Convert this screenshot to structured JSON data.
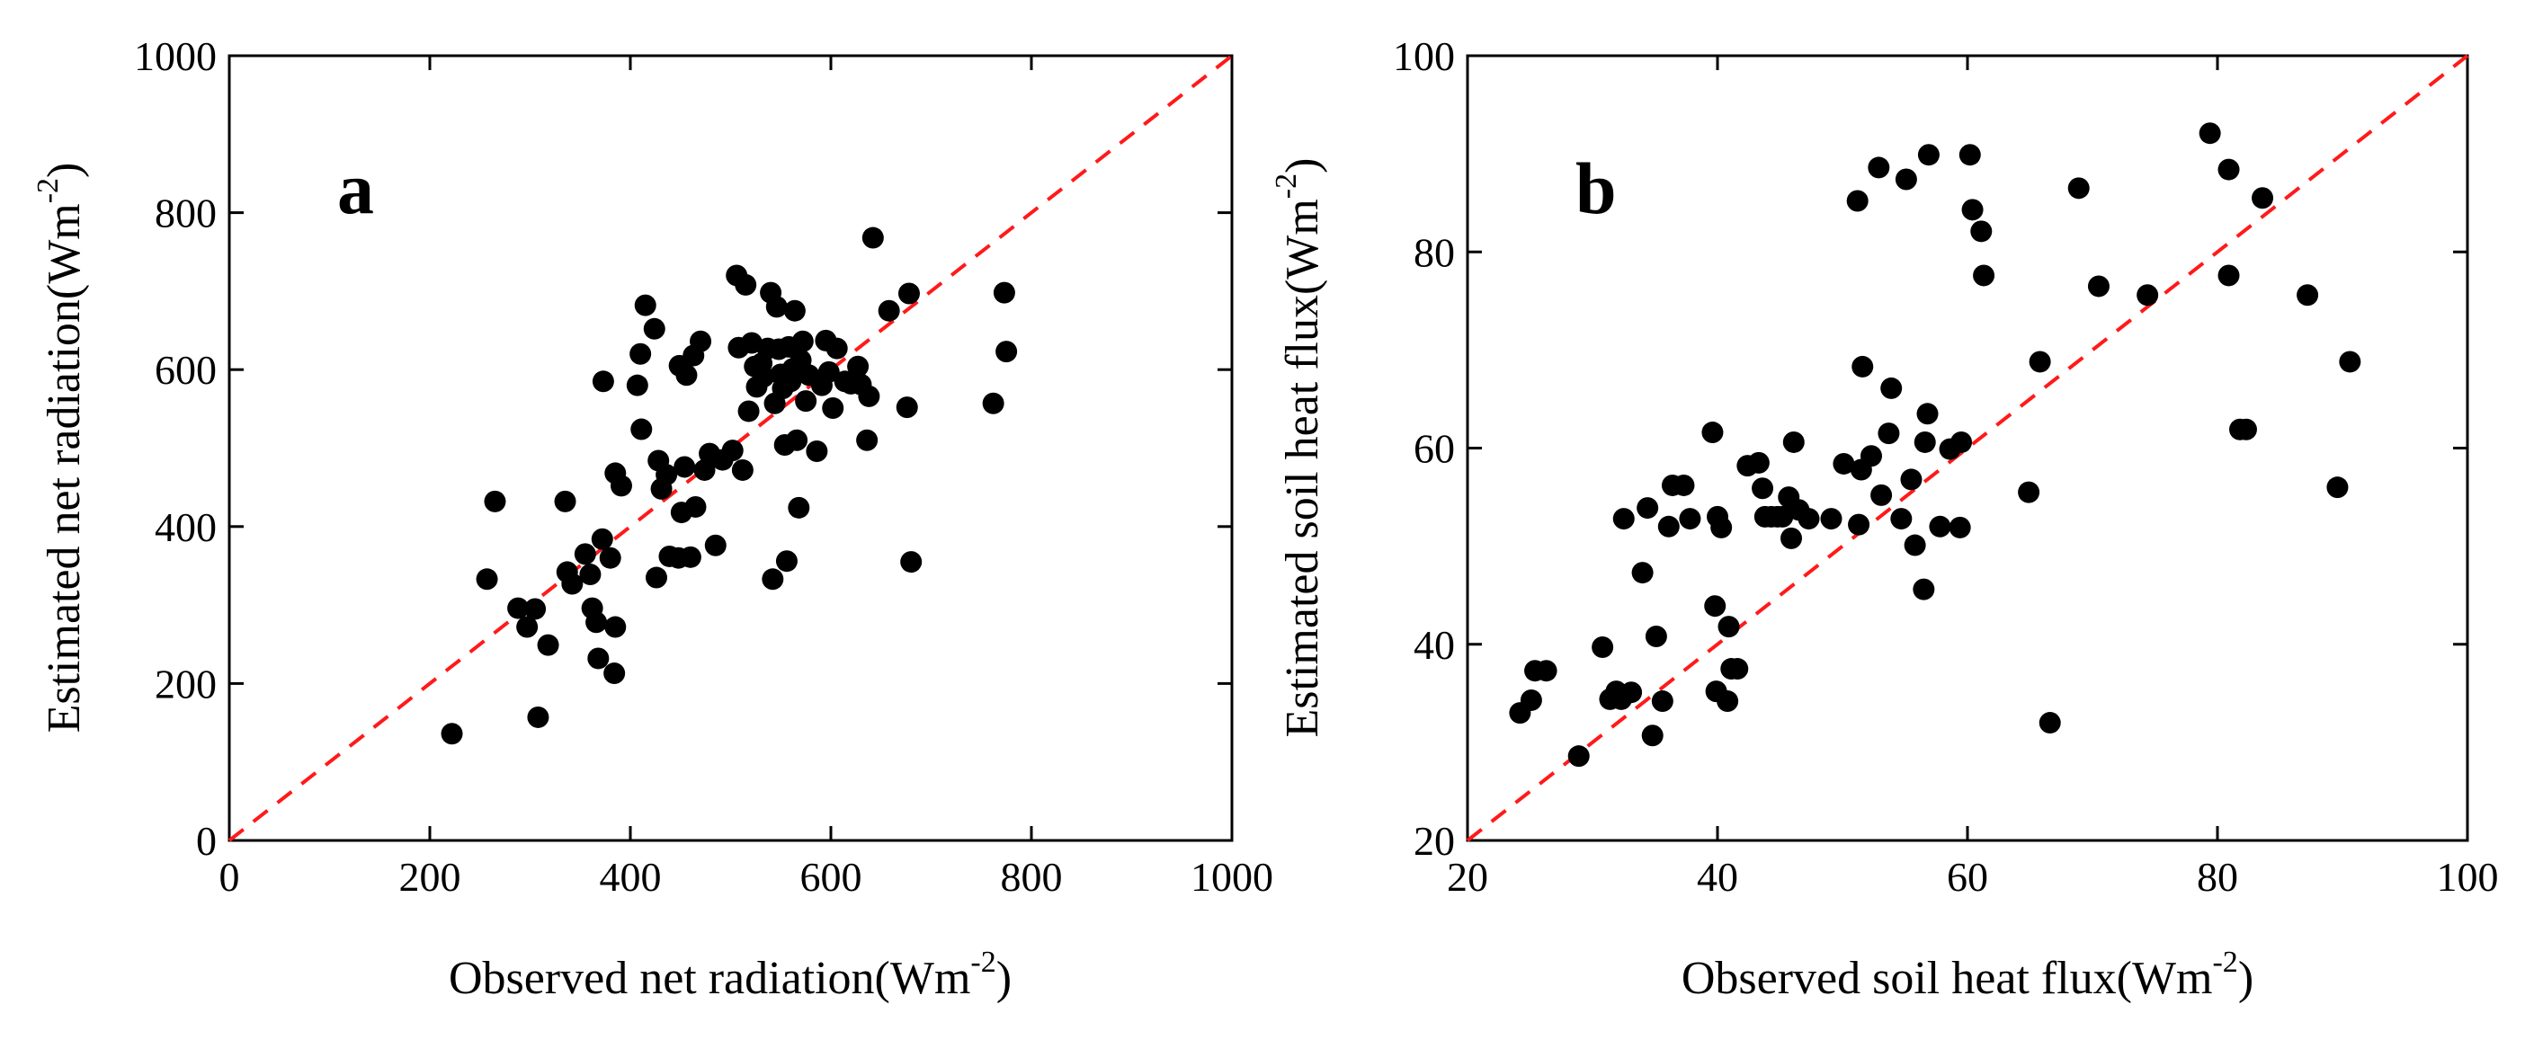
{
  "chart_data": [
    {
      "type": "scatter",
      "panel_label": "a",
      "xlabel": "Observed net radiation(Wm",
      "ylabel": "Estimated net radiation(Wm",
      "unit_exponent": "-2",
      "unit_close": ")",
      "xlim": [
        0,
        1000
      ],
      "ylim": [
        0,
        1000
      ],
      "xticks": [
        "0",
        "200",
        "400",
        "600",
        "800",
        "1000"
      ],
      "yticks": [
        "0",
        "200",
        "400",
        "600",
        "800",
        "1000"
      ],
      "reference_line": {
        "label": "1:1 line",
        "color": "#ff1a1a",
        "style": "dashed"
      },
      "marker_color": "#000000",
      "points": [
        [
          222,
          136
        ],
        [
          257,
          333
        ],
        [
          265,
          432
        ],
        [
          288,
          296
        ],
        [
          297,
          272
        ],
        [
          305,
          295
        ],
        [
          308,
          157
        ],
        [
          318,
          249
        ],
        [
          335,
          432
        ],
        [
          337,
          342
        ],
        [
          342,
          327
        ],
        [
          355,
          365
        ],
        [
          360,
          339
        ],
        [
          362,
          296
        ],
        [
          366,
          278
        ],
        [
          368,
          232
        ],
        [
          372,
          384
        ],
        [
          373,
          585
        ],
        [
          380,
          360
        ],
        [
          384,
          213
        ],
        [
          385,
          272
        ],
        [
          385,
          468
        ],
        [
          391,
          452
        ],
        [
          407,
          580
        ],
        [
          410,
          620
        ],
        [
          411,
          524
        ],
        [
          415,
          682
        ],
        [
          424,
          652
        ],
        [
          426,
          335
        ],
        [
          428,
          484
        ],
        [
          431,
          448
        ],
        [
          436,
          466
        ],
        [
          439,
          362
        ],
        [
          448,
          360
        ],
        [
          449,
          605
        ],
        [
          451,
          418
        ],
        [
          454,
          476
        ],
        [
          456,
          593
        ],
        [
          460,
          361
        ],
        [
          463,
          618
        ],
        [
          465,
          425
        ],
        [
          470,
          636
        ],
        [
          474,
          472
        ],
        [
          479,
          493
        ],
        [
          485,
          376
        ],
        [
          492,
          485
        ],
        [
          502,
          497
        ],
        [
          506,
          720
        ],
        [
          508,
          628
        ],
        [
          512,
          472
        ],
        [
          515,
          708
        ],
        [
          518,
          547
        ],
        [
          521,
          634
        ],
        [
          524,
          604
        ],
        [
          526,
          578
        ],
        [
          528,
          605
        ],
        [
          531,
          608
        ],
        [
          533,
          591
        ],
        [
          537,
          627
        ],
        [
          540,
          698
        ],
        [
          542,
          333
        ],
        [
          544,
          557
        ],
        [
          546,
          680
        ],
        [
          548,
          626
        ],
        [
          550,
          594
        ],
        [
          552,
          576
        ],
        [
          554,
          504
        ],
        [
          556,
          356
        ],
        [
          558,
          629
        ],
        [
          560,
          585
        ],
        [
          562,
          601
        ],
        [
          564,
          675
        ],
        [
          566,
          510
        ],
        [
          568,
          424
        ],
        [
          570,
          612
        ],
        [
          572,
          636
        ],
        [
          575,
          560
        ],
        [
          578,
          593
        ],
        [
          586,
          496
        ],
        [
          591,
          580
        ],
        [
          595,
          637
        ],
        [
          598,
          597
        ],
        [
          602,
          551
        ],
        [
          606,
          627
        ],
        [
          614,
          585
        ],
        [
          620,
          582
        ],
        [
          627,
          604
        ],
        [
          630,
          581
        ],
        [
          636,
          510
        ],
        [
          638,
          566
        ],
        [
          642,
          768
        ],
        [
          658,
          675
        ],
        [
          676,
          552
        ],
        [
          678,
          697
        ],
        [
          680,
          355
        ],
        [
          762,
          557
        ],
        [
          773,
          698
        ],
        [
          775,
          623
        ]
      ]
    },
    {
      "type": "scatter",
      "panel_label": "b",
      "xlabel": "Observed soil heat flux(Wm",
      "ylabel": "Estimated soil heat flux(Wm",
      "unit_exponent": "-2",
      "unit_close": ")",
      "xlim": [
        20,
        100
      ],
      "ylim": [
        20,
        100
      ],
      "xticks": [
        "20",
        "40",
        "60",
        "80",
        "100"
      ],
      "yticks": [
        "20",
        "40",
        "60",
        "80",
        "100"
      ],
      "reference_line": {
        "label": "1:1 line",
        "color": "#ff1a1a",
        "style": "dashed"
      },
      "marker_color": "#000000",
      "points": [
        [
          24.2,
          33
        ],
        [
          25.1,
          34.3
        ],
        [
          25.4,
          37.3
        ],
        [
          26.3,
          37.3
        ],
        [
          28.9,
          28.6
        ],
        [
          30.8,
          39.7
        ],
        [
          31.4,
          34.4
        ],
        [
          31.9,
          35.2
        ],
        [
          32.3,
          34.4
        ],
        [
          32.5,
          52.8
        ],
        [
          33.1,
          35.1
        ],
        [
          34.0,
          47.3
        ],
        [
          34.4,
          53.9
        ],
        [
          34.8,
          30.7
        ],
        [
          35.1,
          40.8
        ],
        [
          35.6,
          34.2
        ],
        [
          36.1,
          52.0
        ],
        [
          36.4,
          56.2
        ],
        [
          37.3,
          56.2
        ],
        [
          37.8,
          52.8
        ],
        [
          39.6,
          61.6
        ],
        [
          39.8,
          43.9
        ],
        [
          39.9,
          35.2
        ],
        [
          40.0,
          53.0
        ],
        [
          40.3,
          51.9
        ],
        [
          40.8,
          34.2
        ],
        [
          40.9,
          41.8
        ],
        [
          41.1,
          37.5
        ],
        [
          41.6,
          37.5
        ],
        [
          42.4,
          58.2
        ],
        [
          43.3,
          58.5
        ],
        [
          43.6,
          55.9
        ],
        [
          43.8,
          53.0
        ],
        [
          44.3,
          53.0
        ],
        [
          44.8,
          53.0
        ],
        [
          45.2,
          53.0
        ],
        [
          45.7,
          55.0
        ],
        [
          45.9,
          50.8
        ],
        [
          46.1,
          60.6
        ],
        [
          46.5,
          53.7
        ],
        [
          47.3,
          52.8
        ],
        [
          49.1,
          52.8
        ],
        [
          50.1,
          58.4
        ],
        [
          51.2,
          85.2
        ],
        [
          51.3,
          52.2
        ],
        [
          51.5,
          57.8
        ],
        [
          51.6,
          68.3
        ],
        [
          52.3,
          59.2
        ],
        [
          52.9,
          88.6
        ],
        [
          53.1,
          55.2
        ],
        [
          53.7,
          61.5
        ],
        [
          53.9,
          66.1
        ],
        [
          54.7,
          52.8
        ],
        [
          55.1,
          87.4
        ],
        [
          55.5,
          56.8
        ],
        [
          55.8,
          50.1
        ],
        [
          56.5,
          45.6
        ],
        [
          56.6,
          60.6
        ],
        [
          56.8,
          63.5
        ],
        [
          56.9,
          89.9
        ],
        [
          57.8,
          52.0
        ],
        [
          58.6,
          59.9
        ],
        [
          59.4,
          51.9
        ],
        [
          59.5,
          60.6
        ],
        [
          60.2,
          89.9
        ],
        [
          60.4,
          84.3
        ],
        [
          61.1,
          82.1
        ],
        [
          61.3,
          77.6
        ],
        [
          64.9,
          55.5
        ],
        [
          65.8,
          68.8
        ],
        [
          66.6,
          32.0
        ],
        [
          68.9,
          86.5
        ],
        [
          70.5,
          76.5
        ],
        [
          74.4,
          75.6
        ],
        [
          79.4,
          92.1
        ],
        [
          80.9,
          88.4
        ],
        [
          80.9,
          77.6
        ],
        [
          81.8,
          61.9
        ],
        [
          82.3,
          61.9
        ],
        [
          83.6,
          85.5
        ],
        [
          87.2,
          75.6
        ],
        [
          89.6,
          56.0
        ],
        [
          90.6,
          68.8
        ]
      ]
    }
  ]
}
